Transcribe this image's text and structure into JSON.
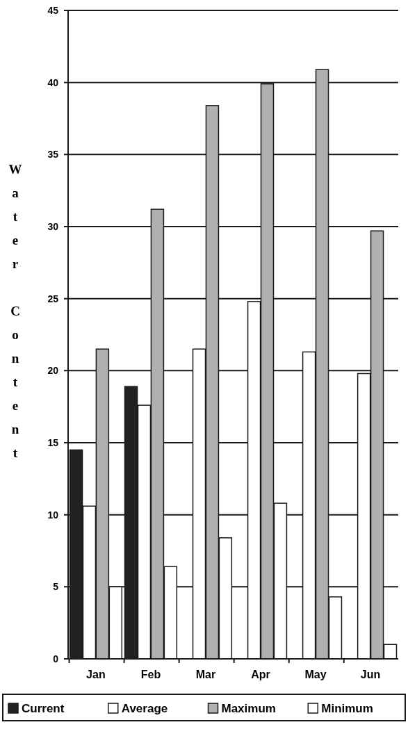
{
  "chart_data": {
    "type": "bar",
    "ylabel": "Water Content",
    "categories": [
      "Jan",
      "Feb",
      "Mar",
      "Apr",
      "May",
      "Jun"
    ],
    "series": [
      {
        "name": "Current",
        "color": "#222222",
        "values": [
          14.5,
          18.9,
          null,
          null,
          null,
          null
        ]
      },
      {
        "name": "Average",
        "color": "#ffffff",
        "values": [
          10.6,
          17.6,
          21.5,
          24.8,
          21.3,
          19.8
        ]
      },
      {
        "name": "Maximum",
        "color": "#b0b0b0",
        "values": [
          21.5,
          31.2,
          38.4,
          39.9,
          40.9,
          29.7
        ]
      },
      {
        "name": "Minimum",
        "color": "#ffffff",
        "values": [
          5.0,
          6.4,
          8.4,
          10.8,
          4.3,
          1.0
        ]
      }
    ],
    "ylim": [
      0,
      45
    ],
    "yticks": [
      0,
      5,
      10,
      15,
      20,
      25,
      30,
      35,
      40,
      45
    ],
    "grid": "y",
    "legend": "bottom"
  }
}
